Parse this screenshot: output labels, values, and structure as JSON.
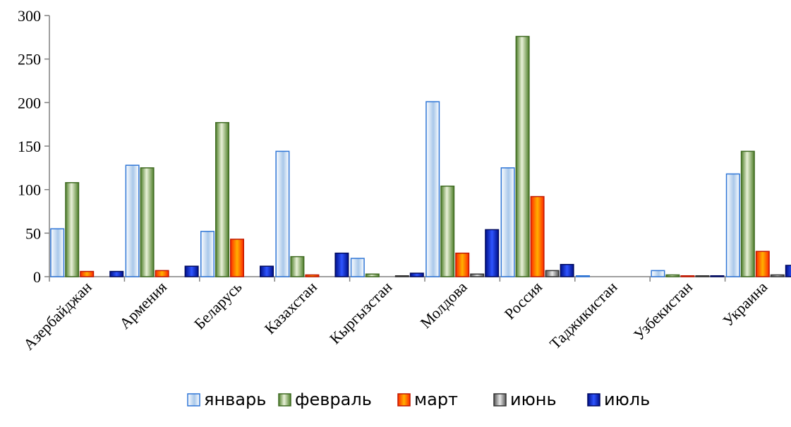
{
  "chart_data": {
    "type": "bar",
    "categories": [
      "Азербайджан",
      "Армения",
      "Беларусь",
      "Казахстан",
      "Кыргызстан",
      "Молдова",
      "Россия",
      "Таджикистан",
      "Узбекистан",
      "Украина"
    ],
    "series": [
      {
        "name": "январь",
        "values": [
          55,
          128,
          52,
          144,
          21,
          201,
          125,
          1,
          7,
          118
        ]
      },
      {
        "name": "февраль",
        "values": [
          108,
          125,
          177,
          23,
          3,
          104,
          276,
          0,
          2,
          144
        ]
      },
      {
        "name": "март",
        "values": [
          6,
          7,
          43,
          2,
          0,
          27,
          92,
          0,
          1,
          29
        ]
      },
      {
        "name": "июнь",
        "values": [
          0,
          0,
          0,
          0,
          1,
          3,
          7,
          0,
          1,
          2
        ]
      },
      {
        "name": "июль",
        "values": [
          6,
          12,
          12,
          27,
          4,
          54,
          14,
          0,
          1,
          13
        ]
      }
    ],
    "title": "",
    "xlabel": "",
    "ylabel": "",
    "ylim": [
      0,
      300
    ],
    "yticks": [
      "0",
      "50",
      "100",
      "150",
      "200",
      "250",
      "300"
    ],
    "grid": false,
    "legend_position": "bottom",
    "colors": {
      "январь": "#9dc3e6",
      "февраль": "#6a9a3a",
      "март": "#ff2a00",
      "июнь": "#7f7f7f",
      "июль": "#0b1db8"
    }
  }
}
